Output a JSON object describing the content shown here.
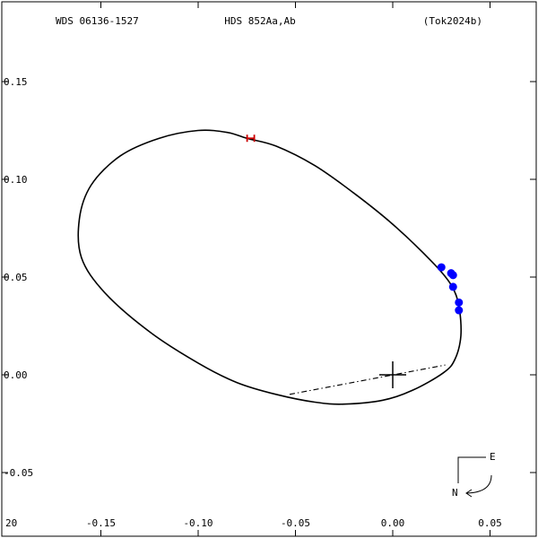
{
  "header": {
    "left": "WDS 06136-1527",
    "center": "HDS 852Aa,Ab",
    "right": "(Tok2024b)"
  },
  "compass": {
    "east": "E",
    "north": "N"
  },
  "chart_data": {
    "type": "scatter",
    "title": "",
    "xlabel": "",
    "ylabel": "",
    "xlim": [
      -0.17,
      0.07
    ],
    "ylim": [
      -0.07,
      0.18
    ],
    "x_ticks": [
      {
        "v": -0.15,
        "label": "-0.15"
      },
      {
        "v": -0.1,
        "label": "-0.10"
      },
      {
        "v": -0.05,
        "label": "-0.05"
      },
      {
        "v": 0.0,
        "label": "0.00"
      },
      {
        "v": 0.05,
        "label": "0.05"
      }
    ],
    "x_edge_label": "20",
    "y_ticks": [
      {
        "v": 0.15,
        "label": "0.15"
      },
      {
        "v": 0.1,
        "label": "0.10"
      },
      {
        "v": 0.05,
        "label": "0.05"
      },
      {
        "v": 0.0,
        "label": "0.00"
      },
      {
        "v": -0.05,
        "label": "-0.05"
      }
    ],
    "orbit": {
      "points": [
        [
          -0.075,
          0.121
        ],
        [
          -0.06,
          0.117
        ],
        [
          -0.04,
          0.107
        ],
        [
          -0.02,
          0.093
        ],
        [
          0.0,
          0.077
        ],
        [
          0.02,
          0.058
        ],
        [
          0.03,
          0.046
        ],
        [
          0.034,
          0.035
        ],
        [
          0.035,
          0.02
        ],
        [
          0.032,
          0.008
        ],
        [
          0.026,
          0.001
        ],
        [
          0.01,
          -0.008
        ],
        [
          -0.005,
          -0.013
        ],
        [
          -0.025,
          -0.015
        ],
        [
          -0.04,
          -0.014
        ],
        [
          -0.06,
          -0.01
        ],
        [
          -0.08,
          -0.004
        ],
        [
          -0.1,
          0.006
        ],
        [
          -0.125,
          0.022
        ],
        [
          -0.148,
          0.042
        ],
        [
          -0.16,
          0.06
        ],
        [
          -0.161,
          0.08
        ],
        [
          -0.155,
          0.097
        ],
        [
          -0.14,
          0.112
        ],
        [
          -0.12,
          0.121
        ],
        [
          -0.1,
          0.125
        ],
        [
          -0.085,
          0.124
        ],
        [
          -0.075,
          0.121
        ]
      ]
    },
    "line_of_nodes": [
      [
        -0.053,
        -0.01
      ],
      [
        0.027,
        0.005
      ]
    ],
    "primary": [
      0.0,
      0.0
    ],
    "observations": [
      [
        0.025,
        0.055
      ],
      [
        0.03,
        0.052
      ],
      [
        0.031,
        0.051
      ],
      [
        0.031,
        0.045
      ],
      [
        0.034,
        0.037
      ],
      [
        0.034,
        0.033
      ]
    ],
    "periastron": [
      -0.073,
      0.121
    ],
    "colors": {
      "orbit": "#000000",
      "observations": "#0000ff",
      "periastron": "#cc0000"
    }
  }
}
